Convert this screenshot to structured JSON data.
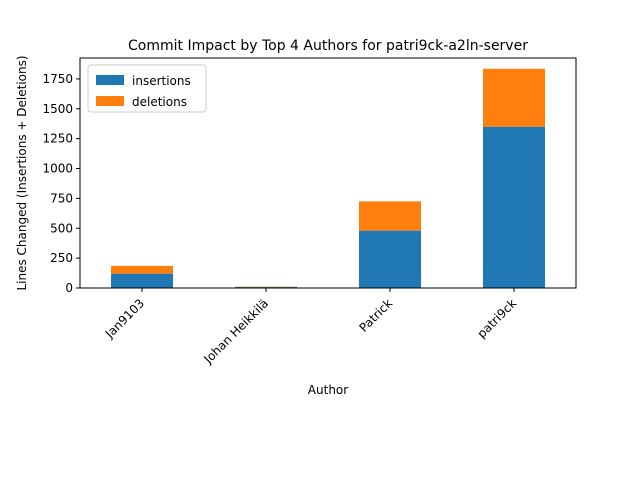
{
  "chart_data": {
    "type": "bar",
    "stacked": true,
    "title": "Commit Impact by Top 4 Authors for patri9ck-a2ln-server",
    "xlabel": "Author",
    "ylabel": "Lines Changed (Insertions + Deletions)",
    "categories": [
      "Jan9103",
      "Johan Heikkilä",
      "Patrick",
      "patri9ck"
    ],
    "series": [
      {
        "name": "insertions",
        "color": "#1f77b4",
        "values": [
          120,
          8,
          480,
          1350
        ]
      },
      {
        "name": "deletions",
        "color": "#ff7f0e",
        "values": [
          65,
          3,
          245,
          485
        ]
      }
    ],
    "ylim": [
      0,
      1925
    ],
    "yticks": [
      0,
      250,
      500,
      750,
      1000,
      1250,
      1500,
      1750
    ],
    "grid": false,
    "legend_position": "upper-left"
  }
}
